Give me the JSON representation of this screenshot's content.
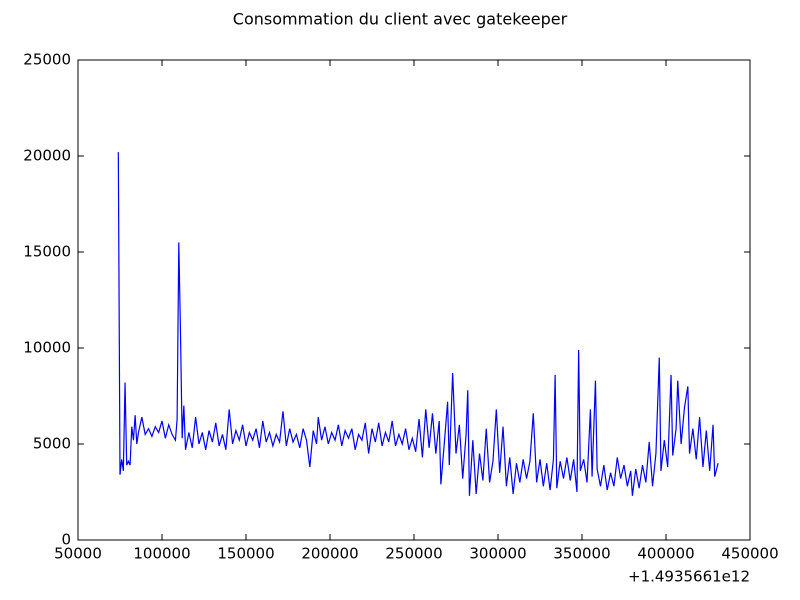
{
  "chart_data": {
    "type": "line",
    "title": "Consommation du client avec gatekeeper",
    "x_offset_label": "+1.4935661e12",
    "x": [
      74000,
      75000,
      76000,
      77000,
      78000,
      79000,
      80000,
      81000,
      82000,
      83000,
      84000,
      85000,
      86000,
      88000,
      90000,
      92000,
      94000,
      96000,
      98000,
      100000,
      102000,
      104000,
      106000,
      108000,
      109000,
      110000,
      111000,
      112000,
      113000,
      114000,
      116000,
      118000,
      120000,
      122000,
      124000,
      126000,
      128000,
      130000,
      132000,
      134000,
      136000,
      138000,
      140000,
      142000,
      144000,
      146000,
      148000,
      150000,
      152000,
      154000,
      156000,
      158000,
      160000,
      162000,
      164000,
      166000,
      168000,
      170000,
      172000,
      174000,
      176000,
      178000,
      180000,
      182000,
      184000,
      186000,
      188000,
      190000,
      192000,
      193000,
      195000,
      197000,
      199000,
      201000,
      203000,
      205000,
      207000,
      209000,
      211000,
      213000,
      215000,
      217000,
      219000,
      221000,
      223000,
      225000,
      227000,
      229000,
      231000,
      233000,
      235000,
      237000,
      239000,
      241000,
      243000,
      245000,
      247000,
      249000,
      251000,
      253000,
      255000,
      257000,
      259000,
      261000,
      263000,
      265000,
      266000,
      268000,
      270000,
      271000,
      273000,
      275000,
      277000,
      279000,
      281000,
      282000,
      283000,
      285000,
      287000,
      289000,
      291000,
      293000,
      295000,
      297000,
      299000,
      301000,
      303000,
      305000,
      307000,
      309000,
      311000,
      313000,
      315000,
      317000,
      319000,
      321000,
      323000,
      325000,
      327000,
      329000,
      331000,
      333000,
      334000,
      335000,
      337000,
      339000,
      341000,
      343000,
      345000,
      347000,
      348000,
      349000,
      351000,
      353000,
      355000,
      356000,
      358000,
      359000,
      361000,
      363000,
      365000,
      367000,
      369000,
      371000,
      373000,
      375000,
      377000,
      379000,
      380000,
      382000,
      384000,
      386000,
      388000,
      390000,
      392000,
      394000,
      396000,
      397000,
      399000,
      401000,
      403000,
      404000,
      406000,
      407000,
      409000,
      411000,
      413000,
      414000,
      416000,
      418000,
      420000,
      422000,
      424000,
      426000,
      428000,
      429000,
      431000
    ],
    "series": [
      {
        "color": "#0000ff",
        "values": [
          20200,
          3400,
          4200,
          3600,
          8200,
          3900,
          4100,
          3900,
          5900,
          5200,
          6500,
          5000,
          5600,
          6400,
          5500,
          5800,
          5400,
          5900,
          5600,
          6200,
          5300,
          6000,
          5500,
          5200,
          6300,
          15500,
          10800,
          5300,
          7000,
          4700,
          5600,
          4800,
          6400,
          5000,
          5600,
          4700,
          5700,
          5100,
          6100,
          4900,
          5500,
          4700,
          6800,
          5000,
          5700,
          5200,
          6000,
          4900,
          5600,
          5200,
          5800,
          4800,
          6200,
          5100,
          5600,
          4900,
          5500,
          5100,
          6700,
          4900,
          5800,
          5100,
          5500,
          4800,
          5800,
          5200,
          3800,
          5700,
          5000,
          6400,
          5200,
          5900,
          5000,
          5600,
          5200,
          6000,
          4900,
          5700,
          5300,
          5800,
          4700,
          5500,
          5200,
          6100,
          4500,
          5800,
          5100,
          6100,
          4900,
          5600,
          5100,
          6200,
          4900,
          5500,
          5000,
          5800,
          4700,
          5300,
          4600,
          6300,
          4300,
          6800,
          4800,
          6600,
          4500,
          6200,
          2900,
          5000,
          7200,
          3900,
          8700,
          4500,
          6000,
          3200,
          5500,
          7800,
          2300,
          5200,
          2400,
          4500,
          3100,
          5800,
          3000,
          4100,
          6800,
          3500,
          5900,
          2800,
          4300,
          2400,
          4000,
          3000,
          4200,
          3200,
          4100,
          6600,
          3000,
          4200,
          2800,
          4000,
          2600,
          4200,
          8600,
          2700,
          4100,
          3200,
          4300,
          3100,
          4200,
          2500,
          9900,
          3600,
          4200,
          3000,
          6800,
          3300,
          8300,
          3700,
          2800,
          3900,
          2600,
          3500,
          2800,
          4300,
          3200,
          3900,
          2800,
          3600,
          2300,
          3700,
          2700,
          3900,
          3000,
          5100,
          2800,
          4500,
          9500,
          3600,
          5200,
          3800,
          8600,
          4400,
          5800,
          8300,
          5000,
          6900,
          8000,
          4500,
          5800,
          4200,
          6400,
          3800,
          5700,
          3600,
          6000,
          3300,
          4000
        ]
      }
    ],
    "xlim": [
      50000,
      450000
    ],
    "xticks": [
      50000,
      100000,
      150000,
      200000,
      250000,
      300000,
      350000,
      400000,
      450000
    ],
    "ylim": [
      0,
      25000
    ],
    "yticks": [
      0,
      5000,
      10000,
      15000,
      20000,
      25000
    ],
    "grid": false
  }
}
